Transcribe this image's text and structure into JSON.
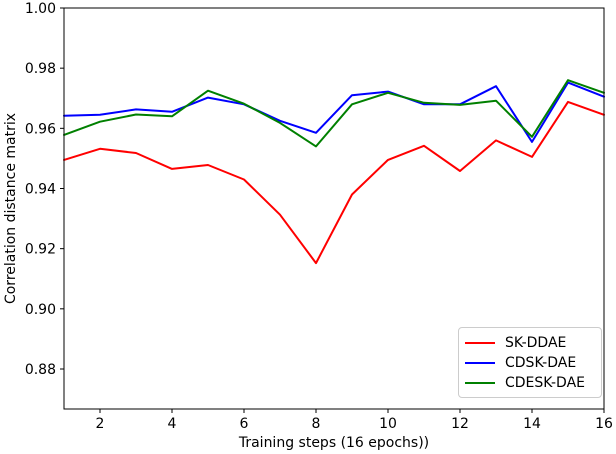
{
  "chart_data": {
    "type": "line",
    "title": "",
    "xlabel": "Training steps (16 epochs))",
    "ylabel": "Correlation distance matrix",
    "xlim": [
      1,
      16
    ],
    "ylim": [
      0.8667,
      1.0
    ],
    "grid": false,
    "legend_position": "lower right",
    "xticks": [
      2,
      4,
      6,
      8,
      10,
      12,
      14,
      16
    ],
    "xtick_labels": [
      "2",
      "4",
      "6",
      "8",
      "10",
      "12",
      "14",
      "16"
    ],
    "yticks": [
      0.88,
      0.9,
      0.92,
      0.94,
      0.96,
      0.98,
      1.0
    ],
    "ytick_labels": [
      "0.88",
      "0.90",
      "0.92",
      "0.94",
      "0.96",
      "0.98",
      "1.00"
    ],
    "x": [
      1,
      2,
      3,
      4,
      5,
      6,
      7,
      8,
      9,
      10,
      11,
      12,
      13,
      14,
      15,
      16
    ],
    "series": [
      {
        "name": "SK-DDAE",
        "color": "#ff0000",
        "values": [
          0.9495,
          0.9532,
          0.9518,
          0.9465,
          0.9478,
          0.943,
          0.9313,
          0.9152,
          0.938,
          0.9495,
          0.9542,
          0.9458,
          0.956,
          0.9505,
          0.9688,
          0.9645
        ]
      },
      {
        "name": "CDSK-DAE",
        "color": "#0000ff",
        "values": [
          0.9642,
          0.9645,
          0.9663,
          0.9655,
          0.9702,
          0.968,
          0.9625,
          0.9585,
          0.971,
          0.9722,
          0.968,
          0.968,
          0.974,
          0.9555,
          0.9752,
          0.9705
        ]
      },
      {
        "name": "CDESK-DAE",
        "color": "#008000",
        "values": [
          0.9578,
          0.9622,
          0.9646,
          0.964,
          0.9725,
          0.9682,
          0.9618,
          0.954,
          0.968,
          0.9718,
          0.9685,
          0.9678,
          0.9692,
          0.9572,
          0.976,
          0.9718
        ]
      }
    ],
    "style": {
      "line_width": 2,
      "spine_color": "#000000",
      "background": "#ffffff",
      "legend_border_color": "#cccccc"
    }
  }
}
